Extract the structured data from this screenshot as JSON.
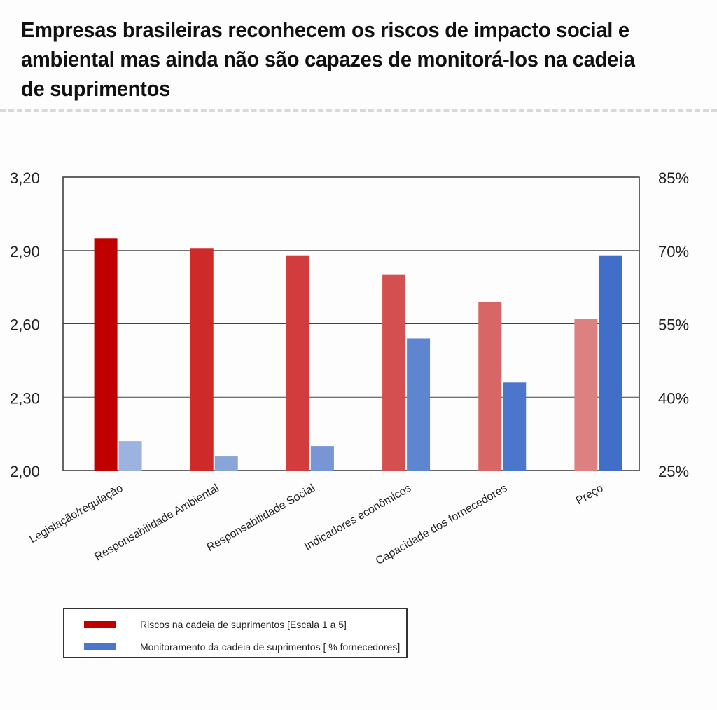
{
  "title": "Empresas brasileiras reconhecem os riscos de impacto social e ambiental mas ainda não são capazes de monitorá-los na cadeia de suprimentos",
  "chart_data": {
    "type": "bar",
    "categories": [
      "Legislação/regulação",
      "Responsabilidade Ambiental",
      "Responsabilidade Social",
      "Indicadores econômicos",
      "Capacidade dos fornecedores",
      "Preço"
    ],
    "series": [
      {
        "name": "Riscos na cadeia de suprimentos [Escala 1 a 5]",
        "axis": "left",
        "values": [
          2.95,
          2.91,
          2.88,
          2.8,
          2.69,
          2.62
        ],
        "colors": [
          "#c00000",
          "#cf2a2a",
          "#d23c3c",
          "#d45050",
          "#d86666",
          "#dc8080"
        ]
      },
      {
        "name": "Monitoramento da cadeia de suprimentos [ % fornecedores]",
        "axis": "right",
        "values": [
          31,
          28,
          30,
          52,
          43,
          69
        ],
        "colors": [
          "#9bb3de",
          "#88a5d8",
          "#7896d6",
          "#5e86d0",
          "#4a77cb",
          "#416fc8"
        ]
      }
    ],
    "left_axis": {
      "ticks": [
        "2,00",
        "2,30",
        "2,60",
        "2,90",
        "3,20"
      ],
      "ylim": [
        2.0,
        3.2
      ]
    },
    "right_axis": {
      "ticks": [
        "25%",
        "40%",
        "55%",
        "70%",
        "85%"
      ],
      "ylim": [
        25,
        85
      ]
    },
    "grid": true,
    "legend_position": "bottom-left"
  },
  "legend": {
    "items": [
      {
        "label": "Riscos na cadeia de suprimentos [Escala 1 a 5]",
        "color": "#c00000"
      },
      {
        "label": "Monitoramento da cadeia de suprimentos [ % fornecedores]",
        "color": "#4a77cb"
      }
    ]
  }
}
